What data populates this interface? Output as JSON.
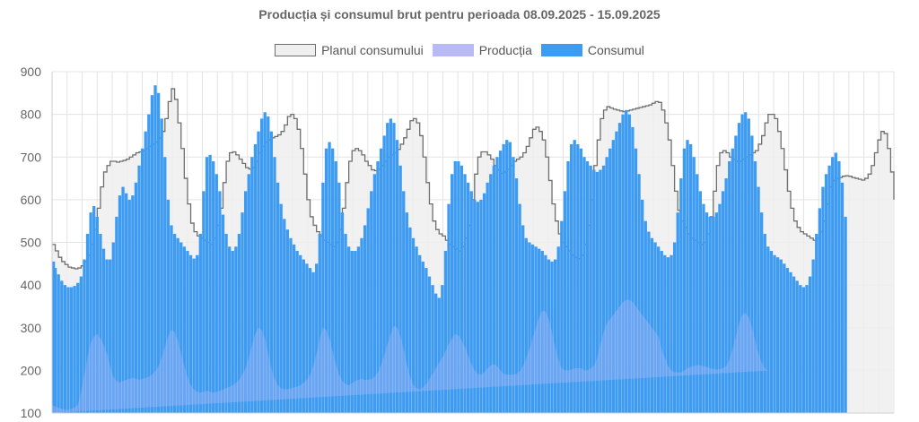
{
  "colors": {
    "plan_stroke": "#6e6e6e",
    "plan_fill": "#efefef",
    "production_fill": "#b9b9f5",
    "consumption_fill": "#3d9bf2",
    "grid": "#e3e3e3"
  },
  "chart_data": {
    "type": "area",
    "title": "Producția și consumul brut pentru perioada 08.09.2025 - 15.09.2025",
    "xlabel": "",
    "ylabel": "",
    "ylim": [
      100,
      900
    ],
    "yticks": [
      100,
      200,
      300,
      400,
      500,
      600,
      700,
      800,
      900
    ],
    "grid": true,
    "legend_position": "top-center",
    "legend": [
      "Planul consumului",
      "Producția",
      "Consumul"
    ],
    "points_per_day": 48,
    "series": [
      {
        "name": "Planul consumului",
        "values": [
          495,
          480,
          465,
          455,
          448,
          442,
          440,
          438,
          440,
          445,
          455,
          470,
          495,
          530,
          580,
          630,
          665,
          680,
          690,
          690,
          688,
          690,
          692,
          695,
          700,
          705,
          710,
          712,
          715,
          720,
          725,
          730,
          735,
          745,
          760,
          790,
          830,
          860,
          835,
          780,
          720,
          650,
          590,
          545,
          525,
          515,
          510,
          505,
          500,
          495,
          510,
          540,
          580,
          640,
          690,
          710,
          712,
          705,
          695,
          685,
          675,
          672,
          675,
          690,
          710,
          725,
          735,
          740,
          745,
          748,
          752,
          760,
          775,
          795,
          800,
          790,
          765,
          720,
          660,
          600,
          560,
          540,
          525,
          515,
          505,
          500,
          495,
          490,
          500,
          530,
          580,
          640,
          690,
          715,
          720,
          715,
          705,
          690,
          680,
          670,
          668,
          672,
          680,
          690,
          700,
          705,
          710,
          718,
          730,
          745,
          765,
          785,
          790,
          780,
          750,
          700,
          640,
          590,
          550,
          530,
          520,
          515,
          505,
          495,
          490,
          485,
          480,
          490,
          510,
          540,
          600,
          660,
          700,
          712,
          712,
          705,
          695,
          680,
          670,
          662,
          665,
          672,
          680,
          690,
          695,
          700,
          710,
          725,
          745,
          765,
          770,
          760,
          740,
          700,
          645,
          590,
          550,
          520,
          500,
          490,
          480,
          470,
          465,
          462,
          470,
          495,
          540,
          600,
          680,
          740,
          790,
          810,
          818,
          815,
          812,
          810,
          808,
          806,
          808,
          810,
          812,
          814,
          816,
          818,
          820,
          822,
          826,
          830,
          828,
          810,
          780,
          740,
          680,
          620,
          575,
          550,
          535,
          520,
          510,
          505,
          500,
          495,
          500,
          520,
          560,
          620,
          680,
          710,
          715,
          710,
          700,
          695,
          690,
          690,
          695,
          700,
          705,
          710,
          715,
          730,
          750,
          780,
          800,
          800,
          790,
          760,
          720,
          670,
          620,
          580,
          550,
          535,
          525,
          520,
          515,
          510,
          505,
          510,
          525,
          550,
          590,
          630,
          645,
          650,
          652,
          655,
          656,
          655,
          652,
          650,
          648,
          646,
          650,
          660,
          680,
          710,
          740,
          760,
          755,
          720,
          665,
          600
        ],
        "style": "step"
      },
      {
        "name": "Producția",
        "values": [
          118,
          115,
          112,
          110,
          108,
          108,
          110,
          112,
          120,
          150,
          190,
          230,
          265,
          280,
          285,
          275,
          260,
          240,
          210,
          185,
          175,
          172,
          175,
          178,
          180,
          182,
          180,
          178,
          180,
          182,
          185,
          190,
          198,
          210,
          230,
          255,
          280,
          295,
          290,
          270,
          240,
          210,
          185,
          165,
          155,
          150,
          148,
          150,
          152,
          150,
          148,
          150,
          152,
          155,
          158,
          162,
          165,
          170,
          178,
          190,
          205,
          230,
          260,
          285,
          300,
          295,
          275,
          240,
          205,
          180,
          165,
          158,
          155,
          156,
          158,
          160,
          162,
          165,
          170,
          178,
          190,
          210,
          240,
          275,
          300,
          295,
          275,
          245,
          215,
          190,
          175,
          168,
          165,
          170,
          175,
          178,
          180,
          178,
          178,
          180,
          185,
          195,
          212,
          235,
          262,
          285,
          305,
          300,
          280,
          250,
          215,
          185,
          165,
          158,
          155,
          160,
          168,
          180,
          192,
          205,
          218,
          230,
          245,
          262,
          275,
          285,
          282,
          270,
          255,
          235,
          215,
          200,
          192,
          190,
          195,
          205,
          212,
          215,
          210,
          200,
          192,
          190,
          190,
          190,
          192,
          198,
          210,
          228,
          250,
          275,
          300,
          325,
          340,
          338,
          320,
          290,
          255,
          225,
          205,
          200,
          200,
          202,
          205,
          205,
          205,
          200,
          200,
          205,
          210,
          230,
          260,
          290,
          310,
          320,
          330,
          340,
          350,
          360,
          365,
          365,
          360,
          350,
          340,
          330,
          320,
          310,
          300,
          290,
          280,
          250,
          230,
          210,
          200,
          195,
          195,
          195,
          200,
          205,
          208,
          210,
          212,
          212,
          210,
          208,
          205,
          203,
          202,
          203,
          205,
          210,
          225,
          250,
          280,
          310,
          330,
          335,
          325,
          300,
          270,
          240,
          218,
          205,
          200,
          200
        ],
        "style": "area"
      },
      {
        "name": "Consumul",
        "values": [
          455,
          440,
          425,
          410,
          400,
          395,
          395,
          398,
          405,
          420,
          460,
          520,
          570,
          585,
          560,
          520,
          485,
          460,
          460,
          500,
          560,
          610,
          630,
          615,
          600,
          610,
          640,
          680,
          720,
          760,
          800,
          845,
          868,
          850,
          790,
          700,
          600,
          540,
          520,
          510,
          500,
          490,
          480,
          470,
          462,
          470,
          520,
          620,
          700,
          705,
          690,
          660,
          620,
          565,
          520,
          490,
          480,
          490,
          520,
          570,
          620,
          660,
          700,
          730,
          760,
          790,
          805,
          795,
          760,
          700,
          640,
          590,
          555,
          530,
          510,
          495,
          480,
          470,
          460,
          450,
          440,
          430,
          450,
          520,
          640,
          720,
          735,
          720,
          690,
          640,
          570,
          520,
          490,
          480,
          480,
          490,
          510,
          540,
          580,
          620,
          660,
          690,
          720,
          750,
          780,
          790,
          780,
          740,
          680,
          620,
          570,
          535,
          510,
          490,
          470,
          455,
          440,
          420,
          400,
          380,
          370,
          400,
          480,
          590,
          660,
          690,
          690,
          680,
          660,
          640,
          620,
          600,
          595,
          600,
          615,
          640,
          660,
          680,
          700,
          715,
          730,
          740,
          735,
          700,
          650,
          590,
          540,
          510,
          500,
          495,
          490,
          485,
          480,
          470,
          460,
          455,
          460,
          490,
          550,
          620,
          690,
          730,
          740,
          730,
          720,
          700,
          690,
          680,
          670,
          665,
          670,
          680,
          700,
          720,
          740,
          760,
          780,
          800,
          810,
          800,
          770,
          720,
          660,
          600,
          550,
          525,
          510,
          500,
          490,
          480,
          470,
          465,
          470,
          500,
          570,
          650,
          720,
          740,
          730,
          700,
          660,
          620,
          590,
          570,
          560,
          560,
          570,
          590,
          620,
          650,
          690,
          720,
          750,
          780,
          800,
          805,
          790,
          750,
          690,
          630,
          570,
          520,
          490,
          480,
          470,
          465,
          460,
          450,
          440,
          430,
          420,
          410,
          400,
          395,
          400,
          420,
          460,
          520,
          580,
          630,
          660,
          680,
          700,
          710,
          690,
          640,
          560
        ]
      }
    ]
  }
}
